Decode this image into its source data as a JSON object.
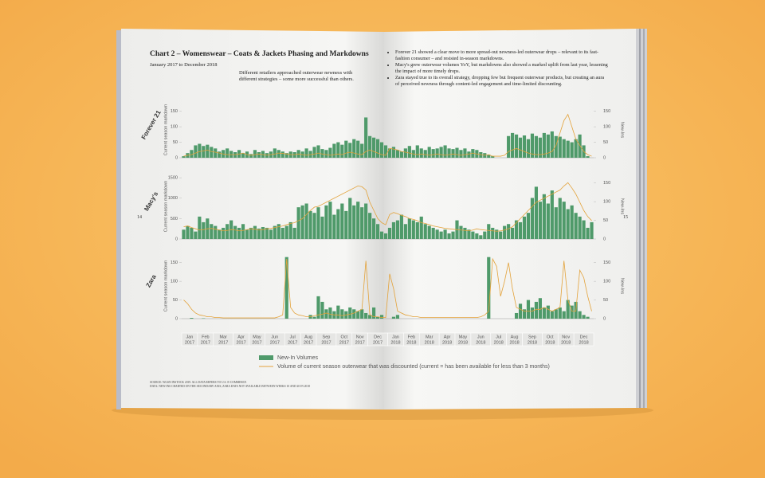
{
  "page": {
    "left_number": "14",
    "right_number": "15",
    "title": "Chart 2 – Womenswear – Coats & Jackets Phasing and Markdowns",
    "subtitle": "January 2017 to December 2018",
    "intro": "Different retailers approached outerwear newness with different strategies – some more successful than others.",
    "bullets": [
      "Forever 21 showed a clear move to more spread-out newness-led outerwear drops – relevant to its fast-fashion consumer – and resisted in-season markdowns.",
      "Macy's grew outerwear volumes YoY, but markdowns also showed a marked uplift from last year, lessening the impact of more timely drops.",
      "Zara stayed true to its overall strategy, dropping few but frequent outerwear products, but creating an aura of perceived newness through content-led engagement and time-limited discounting."
    ],
    "source": [
      "SOURCE: WGSN INSTOCK 2019. ALL DATA REFERS TO U.S. E-COMMERCE",
      "DATA: NEW-INS CHARTED ON THE SECONDARY AXIS; ZARA DATA NOT AVAILABLE BETWEEN WEEKS 10 AND 20 IN 2018"
    ]
  },
  "chart_data": [
    {
      "type": "combo",
      "label": "Forever 21",
      "y_label": "Current season markdown",
      "y2_label": "New-Ins",
      "ylim": [
        0,
        180
      ],
      "yticks": [
        0,
        50,
        100,
        150
      ],
      "y2lim": [
        0,
        180
      ],
      "y2ticks": [
        0,
        50,
        100,
        150
      ],
      "series": [
        {
          "name": "New-In Volumes",
          "type": "bar",
          "axis": "y2",
          "color": "#4f9a6a",
          "values": [
            5,
            15,
            25,
            40,
            45,
            38,
            42,
            35,
            30,
            20,
            25,
            30,
            22,
            18,
            25,
            15,
            20,
            12,
            25,
            18,
            22,
            15,
            20,
            30,
            25,
            20,
            15,
            20,
            18,
            25,
            20,
            30,
            22,
            35,
            40,
            28,
            25,
            32,
            45,
            50,
            42,
            55,
            48,
            60,
            55,
            45,
            130,
            70,
            65,
            60,
            50,
            40,
            30,
            35,
            25,
            20,
            30,
            38,
            25,
            40,
            30,
            25,
            35,
            28,
            30,
            35,
            40,
            30,
            28,
            32,
            25,
            30,
            20,
            28,
            25,
            18,
            15,
            10,
            5,
            0,
            0,
            0,
            70,
            80,
            75,
            65,
            72,
            60,
            78,
            70,
            65,
            80,
            75,
            85,
            70,
            68,
            60,
            55,
            50,
            60,
            75,
            40,
            5,
            0
          ]
        },
        {
          "name": "Volume of current season outerwear that was discounted (current = has been available for less than 3 months)",
          "type": "line",
          "color": "#e3a23a",
          "values": [
            5,
            8,
            10,
            15,
            20,
            22,
            25,
            20,
            18,
            15,
            12,
            10,
            10,
            10,
            12,
            15,
            10,
            8,
            10,
            12,
            10,
            8,
            10,
            12,
            15,
            14,
            12,
            10,
            10,
            12,
            10,
            8,
            10,
            12,
            15,
            12,
            10,
            8,
            10,
            12,
            10,
            15,
            18,
            15,
            12,
            10,
            20,
            25,
            20,
            15,
            10,
            8,
            30,
            28,
            25,
            20,
            18,
            15,
            12,
            10,
            12,
            10,
            8,
            10,
            12,
            10,
            8,
            10,
            12,
            10,
            8,
            10,
            12,
            15,
            12,
            10,
            8,
            10,
            5,
            5,
            5,
            8,
            20,
            25,
            30,
            25,
            20,
            15,
            12,
            10,
            10,
            12,
            15,
            20,
            40,
            80,
            120,
            140,
            100,
            60,
            40,
            20,
            10,
            5
          ]
        }
      ]
    },
    {
      "type": "combo",
      "label": "Macy's",
      "y_label": "Current season markdown",
      "y2_label": "New-Ins",
      "ylim": [
        0,
        1600
      ],
      "yticks": [
        0,
        500,
        1000,
        1500
      ],
      "y2lim": [
        0,
        175
      ],
      "y2ticks": [
        0,
        50,
        100,
        150
      ],
      "series": [
        {
          "type": "bar",
          "axis": "y2",
          "color": "#4f9a6a",
          "values": [
            25,
            35,
            30,
            20,
            60,
            45,
            55,
            40,
            35,
            25,
            30,
            40,
            50,
            35,
            30,
            40,
            25,
            30,
            35,
            28,
            32,
            30,
            25,
            35,
            40,
            30,
            35,
            45,
            30,
            85,
            90,
            95,
            75,
            70,
            85,
            60,
            90,
            100,
            65,
            80,
            95,
            75,
            110,
            90,
            100,
            85,
            95,
            70,
            55,
            40,
            20,
            15,
            30,
            45,
            50,
            65,
            40,
            55,
            50,
            45,
            60,
            40,
            35,
            30,
            25,
            20,
            25,
            15,
            20,
            50,
            35,
            30,
            25,
            20,
            15,
            10,
            20,
            40,
            30,
            25,
            20,
            35,
            40,
            30,
            50,
            45,
            60,
            70,
            110,
            140,
            100,
            120,
            95,
            130,
            85,
            110,
            100,
            80,
            90,
            70,
            60,
            50,
            30,
            45
          ]
        },
        {
          "type": "line",
          "color": "#e3a23a",
          "values": [
            300,
            320,
            280,
            250,
            220,
            230,
            250,
            260,
            240,
            220,
            200,
            210,
            230,
            220,
            200,
            210,
            230,
            250,
            240,
            220,
            230,
            250,
            260,
            280,
            300,
            320,
            350,
            380,
            400,
            450,
            500,
            600,
            700,
            780,
            800,
            850,
            900,
            950,
            1000,
            1050,
            1100,
            1150,
            1200,
            1250,
            1300,
            1280,
            1200,
            900,
            700,
            500,
            400,
            350,
            600,
            650,
            620,
            580,
            550,
            500,
            480,
            450,
            400,
            380,
            350,
            320,
            300,
            280,
            260,
            250,
            240,
            230,
            220,
            210,
            200,
            220,
            250,
            230,
            220,
            210,
            200,
            190,
            200,
            220,
            250,
            300,
            400,
            500,
            600,
            700,
            800,
            900,
            950,
            1000,
            1050,
            1100,
            1150,
            1200,
            1300,
            1380,
            1250,
            1100,
            900,
            700,
            550,
            450
          ]
        }
      ]
    },
    {
      "type": "combo",
      "label": "Zara",
      "y_label": "Current season markdown",
      "y2_label": "New-Ins",
      "ylim": [
        0,
        175
      ],
      "yticks": [
        0,
        50,
        100,
        150
      ],
      "y2lim": [
        0,
        175
      ],
      "y2ticks": [
        0,
        50,
        100,
        150
      ],
      "series": [
        {
          "type": "bar",
          "axis": "y2",
          "color": "#4f9a6a",
          "values": [
            0,
            0,
            2,
            0,
            0,
            1,
            0,
            0,
            0,
            0,
            0,
            0,
            0,
            0,
            0,
            0,
            0,
            0,
            0,
            0,
            0,
            0,
            0,
            0,
            0,
            0,
            165,
            0,
            0,
            0,
            0,
            0,
            10,
            5,
            60,
            45,
            25,
            30,
            20,
            35,
            25,
            20,
            30,
            25,
            20,
            25,
            15,
            10,
            30,
            5,
            10,
            0,
            0,
            5,
            10,
            0,
            0,
            0,
            0,
            0,
            0,
            0,
            0,
            0,
            0,
            0,
            0,
            0,
            0,
            0,
            0,
            0,
            0,
            0,
            0,
            0,
            0,
            165,
            0,
            0,
            0,
            0,
            0,
            0,
            15,
            40,
            25,
            50,
            30,
            45,
            55,
            30,
            35,
            20,
            25,
            30,
            20,
            50,
            35,
            45,
            20,
            10,
            5,
            0
          ]
        },
        {
          "type": "line",
          "color": "#e3a23a",
          "values": [
            50,
            40,
            25,
            15,
            10,
            8,
            5,
            5,
            3,
            3,
            2,
            2,
            2,
            2,
            2,
            2,
            2,
            2,
            2,
            2,
            2,
            2,
            2,
            2,
            5,
            10,
            160,
            30,
            15,
            10,
            8,
            5,
            5,
            8,
            10,
            12,
            15,
            12,
            10,
            10,
            8,
            10,
            12,
            15,
            20,
            25,
            155,
            10,
            5,
            5,
            3,
            3,
            120,
            80,
            20,
            15,
            10,
            8,
            5,
            5,
            3,
            3,
            3,
            3,
            3,
            3,
            3,
            3,
            3,
            3,
            3,
            3,
            3,
            3,
            3,
            5,
            10,
            20,
            160,
            140,
            60,
            100,
            150,
            80,
            30,
            25,
            20,
            20,
            20,
            25,
            25,
            30,
            25,
            20,
            25,
            30,
            155,
            50,
            20,
            20,
            130,
            110,
            60,
            20
          ]
        }
      ],
      "months": [
        {
          "label": "Jan",
          "year": "2017",
          "weeks": 4
        },
        {
          "label": "Feb",
          "year": "2017",
          "weeks": 4
        },
        {
          "label": "Mar",
          "year": "2017",
          "weeks": 5
        },
        {
          "label": "Apr",
          "year": "2017",
          "weeks": 4
        },
        {
          "label": "May",
          "year": "2017",
          "weeks": 4
        },
        {
          "label": "Jun",
          "year": "2017",
          "weeks": 5
        },
        {
          "label": "Jul",
          "year": "2017",
          "weeks": 4
        },
        {
          "label": "Aug",
          "year": "2017",
          "weeks": 4
        },
        {
          "label": "Sep",
          "year": "2017",
          "weeks": 5
        },
        {
          "label": "Oct",
          "year": "2017",
          "weeks": 4
        },
        {
          "label": "Nov",
          "year": "2017",
          "weeks": 4
        },
        {
          "label": "Dec",
          "year": "2017",
          "weeks": 5
        },
        {
          "label": "Jan",
          "year": "2018",
          "weeks": 4
        },
        {
          "label": "Feb",
          "year": "2018",
          "weeks": 4
        },
        {
          "label": "Mar",
          "year": "2018",
          "weeks": 5
        },
        {
          "label": "Apr",
          "year": "2018",
          "weeks": 4
        },
        {
          "label": "May",
          "year": "2018",
          "weeks": 4
        },
        {
          "label": "Jun",
          "year": "2018",
          "weeks": 5
        },
        {
          "label": "Jul",
          "year": "2018",
          "weeks": 4
        },
        {
          "label": "Aug",
          "year": "2018",
          "weeks": 4
        },
        {
          "label": "Sep",
          "year": "2018",
          "weeks": 5
        },
        {
          "label": "Oct",
          "year": "2018",
          "weeks": 4
        },
        {
          "label": "Nov",
          "year": "2018",
          "weeks": 4
        },
        {
          "label": "Dec",
          "year": "2018",
          "weeks": 5
        }
      ]
    }
  ]
}
